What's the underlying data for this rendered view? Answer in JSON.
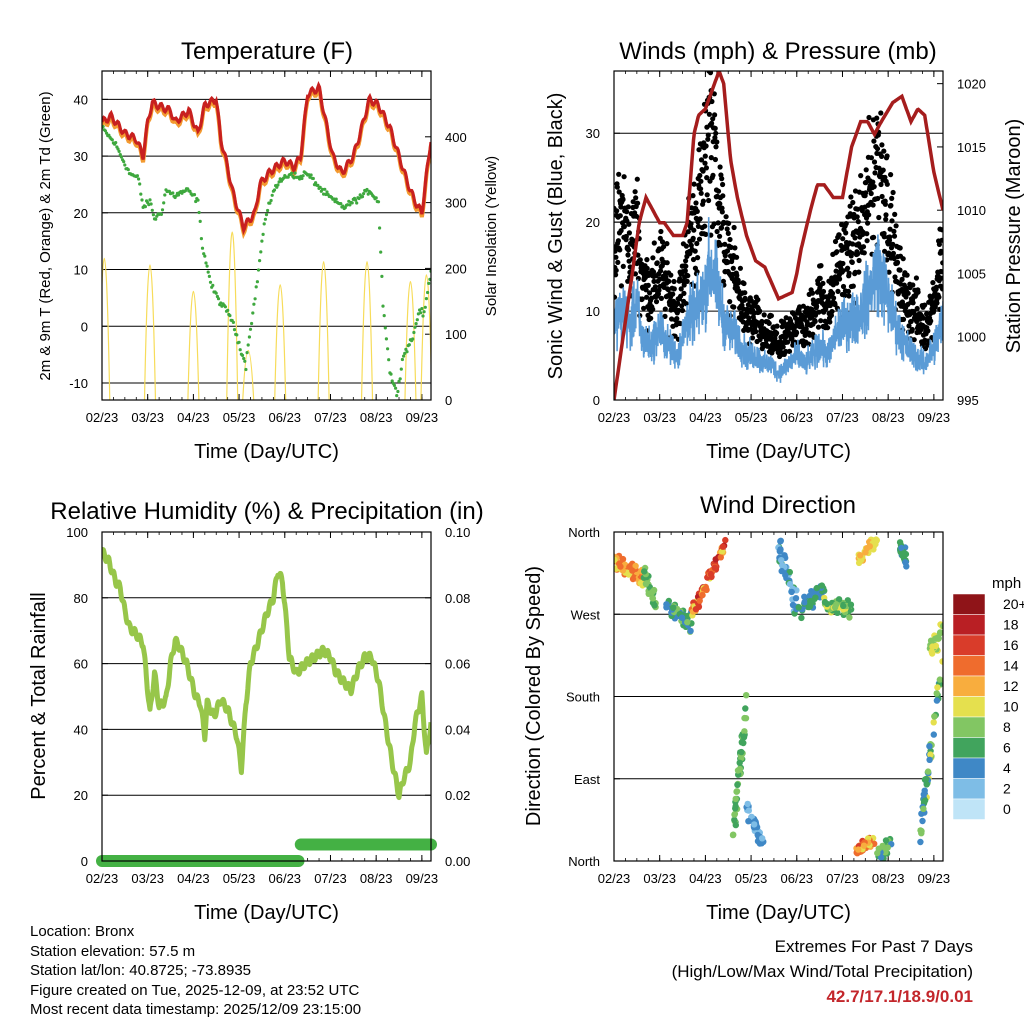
{
  "colors": {
    "red": "#c8201f",
    "orange": "#f39a30",
    "green": "#3ea83e",
    "yellow": "#f7dc5a",
    "blue": "#5a9bd6",
    "black": "#000000",
    "maroon": "#a51d1d",
    "rh": "#97c64a",
    "precip": "#44b144",
    "extremes": "#c3262b"
  },
  "dir_colors": [
    "#bfe4f7",
    "#7ebde6",
    "#3f88c6",
    "#41a45d",
    "#82c663",
    "#e5e04e",
    "#f8ad3e",
    "#ef6c2d",
    "#d93c2a",
    "#b91f24",
    "#8f1418"
  ],
  "chart_data": [
    {
      "id": "temp",
      "type": "line",
      "title": "Temperature (F)",
      "xlabel": "Time (Day/UTC)",
      "ylabel": "2m & 9m T (Red, Orange) & 2m Td (Green)",
      "y2label": "Solar Insolation (Yellow)",
      "categories": [
        "02/23",
        "03/23",
        "04/23",
        "05/23",
        "06/23",
        "07/23",
        "08/23",
        "09/23"
      ],
      "xlim": [
        0,
        7.2
      ],
      "ylim": [
        -13,
        45
      ],
      "yticks": [
        "-10",
        "0",
        "10",
        "20",
        "30",
        "40"
      ],
      "y2lim": [
        0,
        500
      ],
      "y2ticks": [
        "0",
        "100",
        "200",
        "300",
        "400"
      ],
      "series": [
        {
          "name": "2m T",
          "color": "red",
          "x": [
            0,
            0.2,
            0.5,
            0.75,
            0.9,
            1.0,
            1.1,
            1.2,
            1.5,
            1.6,
            1.9,
            2.1,
            2.25,
            2.5,
            2.6,
            2.75,
            2.85,
            3.0,
            3.1,
            3.35,
            3.45,
            3.65,
            3.8,
            3.95,
            4.05,
            4.2,
            4.35,
            4.5,
            4.75,
            5.05,
            5.25,
            5.5,
            5.65,
            5.85,
            6.05,
            6.3,
            6.5,
            6.7,
            6.85,
            7.0,
            7.2
          ],
          "y": [
            36,
            37,
            34,
            33,
            30,
            36,
            39.5,
            39,
            38,
            36,
            38,
            34,
            39,
            40,
            33,
            28,
            24,
            20,
            17.5,
            20,
            25,
            27,
            28,
            29,
            29,
            28,
            30,
            41,
            42,
            30,
            27,
            30,
            34,
            40,
            39,
            35,
            30,
            25,
            22,
            20,
            33
          ]
        },
        {
          "name": "9m T",
          "color": "orange",
          "x": [
            0,
            0.2,
            0.5,
            0.75,
            0.9,
            1.0,
            1.1,
            1.2,
            1.5,
            1.6,
            1.9,
            2.1,
            2.25,
            2.5,
            2.6,
            2.75,
            2.85,
            3.0,
            3.1,
            3.35,
            3.45,
            3.65,
            3.8,
            3.95,
            4.05,
            4.2,
            4.35,
            4.5,
            4.75,
            5.05,
            5.25,
            5.5,
            5.65,
            5.85,
            6.05,
            6.3,
            6.5,
            6.7,
            6.85,
            7.0,
            7.2
          ],
          "y": [
            35.5,
            36.5,
            33.5,
            32.5,
            29.5,
            35.5,
            39,
            38.5,
            37.5,
            35.5,
            37.5,
            33.5,
            38.5,
            39.5,
            32.5,
            27.5,
            23.5,
            19.5,
            17,
            19.5,
            24.5,
            26.5,
            27.5,
            28.5,
            28.5,
            27.5,
            29.5,
            40.5,
            41.5,
            29.5,
            26.5,
            29.5,
            33.5,
            39.5,
            38.5,
            34.5,
            29.5,
            24.5,
            21.5,
            19.5,
            32.5
          ]
        },
        {
          "name": "2m Td",
          "color": "green",
          "x": [
            0,
            0.3,
            0.6,
            0.8,
            0.9,
            1.05,
            1.15,
            1.3,
            1.4,
            1.6,
            1.85,
            2.0,
            2.1,
            2.2,
            2.4,
            2.6,
            2.8,
            3.0,
            3.15,
            3.2,
            3.35,
            3.55,
            3.75,
            3.95,
            4.15,
            4.3,
            4.45,
            4.6,
            4.8,
            5.1,
            5.3,
            5.5,
            5.7,
            5.85,
            5.95,
            6.05,
            6.15,
            6.3,
            6.45,
            6.6,
            6.8,
            6.95,
            7.05,
            7.2
          ],
          "y": [
            35,
            32,
            27,
            26,
            21,
            22,
            19,
            20,
            24,
            23,
            24,
            23,
            22,
            14,
            7,
            4,
            2,
            -3,
            -7,
            -3,
            5,
            18,
            24,
            26,
            27,
            26,
            27,
            26,
            24,
            22,
            21,
            22,
            23,
            24,
            23,
            22,
            4,
            -8,
            -12,
            -5,
            -2,
            3,
            2,
            10
          ]
        },
        {
          "name": "Solar Insolation",
          "color": "yellow",
          "axis": "y2",
          "peaks": [
            [
              0.05,
              400
            ],
            [
              1.05,
              380
            ],
            [
              2.0,
              300
            ],
            [
              2.85,
              480
            ],
            [
              3.2,
              120
            ],
            [
              3.9,
              320
            ],
            [
              4.85,
              390
            ],
            [
              5.8,
              390
            ],
            [
              6.75,
              330
            ],
            [
              7.1,
              350
            ]
          ]
        }
      ]
    },
    {
      "id": "wind",
      "type": "scatter",
      "title": "Winds (mph) & Pressure (mb)",
      "xlabel": "Time (Day/UTC)",
      "ylabel": "Sonic Wind & Gust (Blue, Black)",
      "y2label": "Station Pressure (Maroon)",
      "categories": [
        "02/23",
        "03/23",
        "04/23",
        "05/23",
        "06/23",
        "07/23",
        "08/23",
        "09/23"
      ],
      "xlim": [
        0,
        7.2
      ],
      "ylim": [
        0,
        37
      ],
      "yticks": [
        "0",
        "10",
        "20",
        "30"
      ],
      "y2lim": [
        995,
        1021
      ],
      "y2ticks": [
        "995",
        "1000",
        "1005",
        "1010",
        "1015",
        "1020"
      ],
      "series": [
        {
          "name": "Wind",
          "color": "blue",
          "x": [
            0,
            0.2,
            0.35,
            0.5,
            0.6,
            0.8,
            0.9,
            1.0,
            1.2,
            1.4,
            1.5,
            1.6,
            1.8,
            2.0,
            2.05,
            2.2,
            2.4,
            2.5,
            2.7,
            2.9,
            3.1,
            3.3,
            3.45,
            3.6,
            3.8,
            4.0,
            4.2,
            4.5,
            4.7,
            4.9,
            5.2,
            5.4,
            5.6,
            5.75,
            5.9,
            6.0,
            6.2,
            6.4,
            6.6,
            6.8,
            7.0,
            7.2
          ],
          "y": [
            9,
            10,
            8,
            11,
            7,
            6,
            7,
            8,
            6,
            5,
            7,
            9,
            10,
            12,
            15,
            14,
            9,
            8,
            7,
            5,
            5,
            4,
            4,
            3,
            4,
            5,
            4,
            6,
            5,
            8,
            9,
            10,
            12,
            15,
            13,
            11,
            8,
            6,
            5,
            4,
            6,
            9
          ]
        },
        {
          "name": "Gust",
          "color": "black",
          "x": [
            0,
            0.2,
            0.35,
            0.5,
            0.6,
            0.8,
            0.9,
            1.0,
            1.2,
            1.4,
            1.5,
            1.6,
            1.8,
            2.0,
            2.05,
            2.2,
            2.4,
            2.5,
            2.7,
            2.9,
            3.1,
            3.3,
            3.45,
            3.6,
            3.8,
            4.0,
            4.2,
            4.5,
            4.7,
            4.9,
            5.2,
            5.4,
            5.6,
            5.75,
            5.9,
            6.0,
            6.2,
            6.4,
            6.6,
            6.8,
            7.0,
            7.2
          ],
          "y": [
            17,
            21,
            16,
            20,
            14,
            12,
            13,
            15,
            12,
            10,
            13,
            17,
            20,
            25,
            32,
            28,
            18,
            15,
            13,
            9,
            9,
            7,
            7,
            6,
            7,
            9,
            8,
            12,
            10,
            15,
            17,
            19,
            23,
            28,
            25,
            21,
            14,
            11,
            10,
            8,
            11,
            17
          ]
        },
        {
          "name": "Pressure",
          "color": "maroon",
          "axis": "y2",
          "x": [
            0,
            0.2,
            0.4,
            0.55,
            0.7,
            0.85,
            1.0,
            1.1,
            1.3,
            1.5,
            1.6,
            1.75,
            1.85,
            2.0,
            2.1,
            2.3,
            2.4,
            2.55,
            2.7,
            2.9,
            3.1,
            3.3,
            3.6,
            3.9,
            4.0,
            4.1,
            4.3,
            4.45,
            4.6,
            4.8,
            5.0,
            5.2,
            5.4,
            5.55,
            5.7,
            5.85,
            6.1,
            6.3,
            6.5,
            6.65,
            6.8,
            7.0,
            7.2
          ],
          "y": [
            995,
            1000,
            1005,
            1009,
            1011,
            1010,
            1009,
            1009,
            1008,
            1008,
            1009,
            1016,
            1017.5,
            1018,
            1019,
            1021,
            1020,
            1014,
            1011,
            1008,
            1006,
            1005.5,
            1003,
            1003.5,
            1005,
            1007,
            1010,
            1012,
            1012,
            1011,
            1011,
            1015,
            1017,
            1017,
            1016,
            1017,
            1018.5,
            1019,
            1017,
            1018,
            1017.5,
            1013,
            1010
          ]
        }
      ]
    },
    {
      "id": "rh",
      "type": "line",
      "title": "Relative Humidity (%) & Precipitation (in)",
      "xlabel": "Time (Day/UTC)",
      "ylabel": "Percent & Total Rainfall",
      "categories": [
        "02/23",
        "03/23",
        "04/23",
        "05/23",
        "06/23",
        "07/23",
        "08/23",
        "09/23"
      ],
      "xlim": [
        0,
        7.2
      ],
      "ylim": [
        0,
        100
      ],
      "yticks": [
        "0",
        "20",
        "40",
        "60",
        "80",
        "100"
      ],
      "y2lim": [
        0,
        0.1
      ],
      "y2ticks": [
        "0.00",
        "0.02",
        "0.04",
        "0.06",
        "0.08",
        "0.10"
      ],
      "series": [
        {
          "name": "RH",
          "color": "rh",
          "x": [
            0,
            0.15,
            0.3,
            0.4,
            0.5,
            0.6,
            0.75,
            0.9,
            1.0,
            1.05,
            1.15,
            1.25,
            1.4,
            1.5,
            1.6,
            1.7,
            1.85,
            1.95,
            2.05,
            2.15,
            2.25,
            2.3,
            2.45,
            2.6,
            2.75,
            2.85,
            2.95,
            3.05,
            3.15,
            3.25,
            3.4,
            3.6,
            3.75,
            3.85,
            3.95,
            4.0,
            4.1,
            4.25,
            4.45,
            4.65,
            4.85,
            5.0,
            5.1,
            5.25,
            5.45,
            5.6,
            5.75,
            5.9,
            6.05,
            6.2,
            6.35,
            6.5,
            6.6,
            6.75,
            6.85,
            7.0,
            7.1,
            7.2
          ],
          "y": [
            94,
            91,
            85,
            83,
            76,
            71,
            69,
            66,
            52,
            45,
            57,
            47,
            49,
            60,
            67,
            65,
            60,
            55,
            50,
            48,
            38,
            48,
            44,
            49,
            46,
            42,
            38,
            28,
            48,
            60,
            66,
            75,
            80,
            88,
            85,
            78,
            62,
            57,
            60,
            62,
            64,
            62,
            58,
            55,
            52,
            58,
            62,
            62,
            55,
            42,
            30,
            20,
            25,
            30,
            42,
            50,
            32,
            42
          ]
        },
        {
          "name": "Precipitation",
          "color": "precip",
          "axis": "y2",
          "x": [
            0,
            4.3,
            4.35,
            7.2
          ],
          "y": [
            0,
            0,
            0.005,
            0.005
          ]
        }
      ]
    },
    {
      "id": "dir",
      "type": "scatter",
      "title": "Wind Direction",
      "xlabel": "Time (Day/UTC)",
      "ylabel": "Direction (Colored By Speed)",
      "categories": [
        "02/23",
        "03/23",
        "04/23",
        "05/23",
        "06/23",
        "07/23",
        "08/23",
        "09/23"
      ],
      "xlim": [
        0,
        7.2
      ],
      "ylim": [
        0,
        360
      ],
      "yticks": [
        "North",
        "East",
        "South",
        "West",
        "North"
      ],
      "legend_title": "mph",
      "legend_labels": [
        "0",
        "2",
        "4",
        "6",
        "8",
        "10",
        "12",
        "14",
        "16",
        "18",
        "20+"
      ],
      "clusters": [
        {
          "x0": 0.0,
          "x1": 0.65,
          "y0": 330,
          "y1": 310,
          "spread": 15,
          "speed": [
            10,
            15
          ],
          "n": 60
        },
        {
          "x0": 0.6,
          "x1": 0.9,
          "y0": 320,
          "y1": 285,
          "spread": 15,
          "speed": [
            5,
            9
          ],
          "n": 25
        },
        {
          "x0": 1.15,
          "x1": 1.7,
          "y0": 280,
          "y1": 260,
          "spread": 15,
          "speed": [
            3,
            8
          ],
          "n": 45
        },
        {
          "x0": 1.7,
          "x1": 2.45,
          "y0": 270,
          "y1": 350,
          "spread": 12,
          "speed": [
            10,
            18
          ],
          "n": 65
        },
        {
          "x0": 2.6,
          "x1": 2.9,
          "y0": 30,
          "y1": 170,
          "spread": 25,
          "speed": [
            5,
            9
          ],
          "n": 50
        },
        {
          "x0": 2.9,
          "x1": 3.3,
          "y0": 60,
          "y1": 15,
          "spread": 15,
          "speed": [
            2,
            5
          ],
          "n": 35
        },
        {
          "x0": 3.6,
          "x1": 4.0,
          "y0": 340,
          "y1": 280,
          "spread": 20,
          "speed": [
            2,
            6
          ],
          "n": 45
        },
        {
          "x0": 4.0,
          "x1": 4.6,
          "y0": 270,
          "y1": 300,
          "spread": 15,
          "speed": [
            3,
            7
          ],
          "n": 45
        },
        {
          "x0": 4.6,
          "x1": 5.2,
          "y0": 280,
          "y1": 275,
          "spread": 12,
          "speed": [
            5,
            10
          ],
          "n": 45
        },
        {
          "x0": 5.35,
          "x1": 5.75,
          "y0": 330,
          "y1": 350,
          "spread": 12,
          "speed": [
            9,
            12
          ],
          "n": 30
        },
        {
          "x0": 5.3,
          "x1": 5.7,
          "y0": 10,
          "y1": 25,
          "spread": 10,
          "speed": [
            10,
            16
          ],
          "n": 35
        },
        {
          "x0": 5.75,
          "x1": 6.05,
          "y0": 5,
          "y1": 20,
          "spread": 12,
          "speed": [
            4,
            9
          ],
          "n": 25
        },
        {
          "x0": 6.25,
          "x1": 6.4,
          "y0": 345,
          "y1": 325,
          "spread": 15,
          "speed": [
            3,
            7
          ],
          "n": 20
        },
        {
          "x0": 6.7,
          "x1": 7.2,
          "y0": 30,
          "y1": 225,
          "spread": 20,
          "speed": [
            3,
            10
          ],
          "n": 55
        },
        {
          "x0": 6.9,
          "x1": 7.2,
          "y0": 230,
          "y1": 255,
          "spread": 20,
          "speed": [
            7,
            11
          ],
          "n": 25
        }
      ]
    }
  ],
  "info": {
    "location": "Location: Bronx",
    "elevation": "Station elevation: 57.5 m",
    "latlon": "Station lat/lon: 40.8725; -73.8935",
    "created": "Figure created on Tue, 2025-12-09, at 23:52 UTC",
    "latest": "Most recent data timestamp: 2025/12/09 23:15:00"
  },
  "extremes": {
    "title": "Extremes For Past 7 Days",
    "subtitle": "(High/Low/Max Wind/Total Precipitation)",
    "values": "42.7/17.1/18.9/0.01"
  }
}
